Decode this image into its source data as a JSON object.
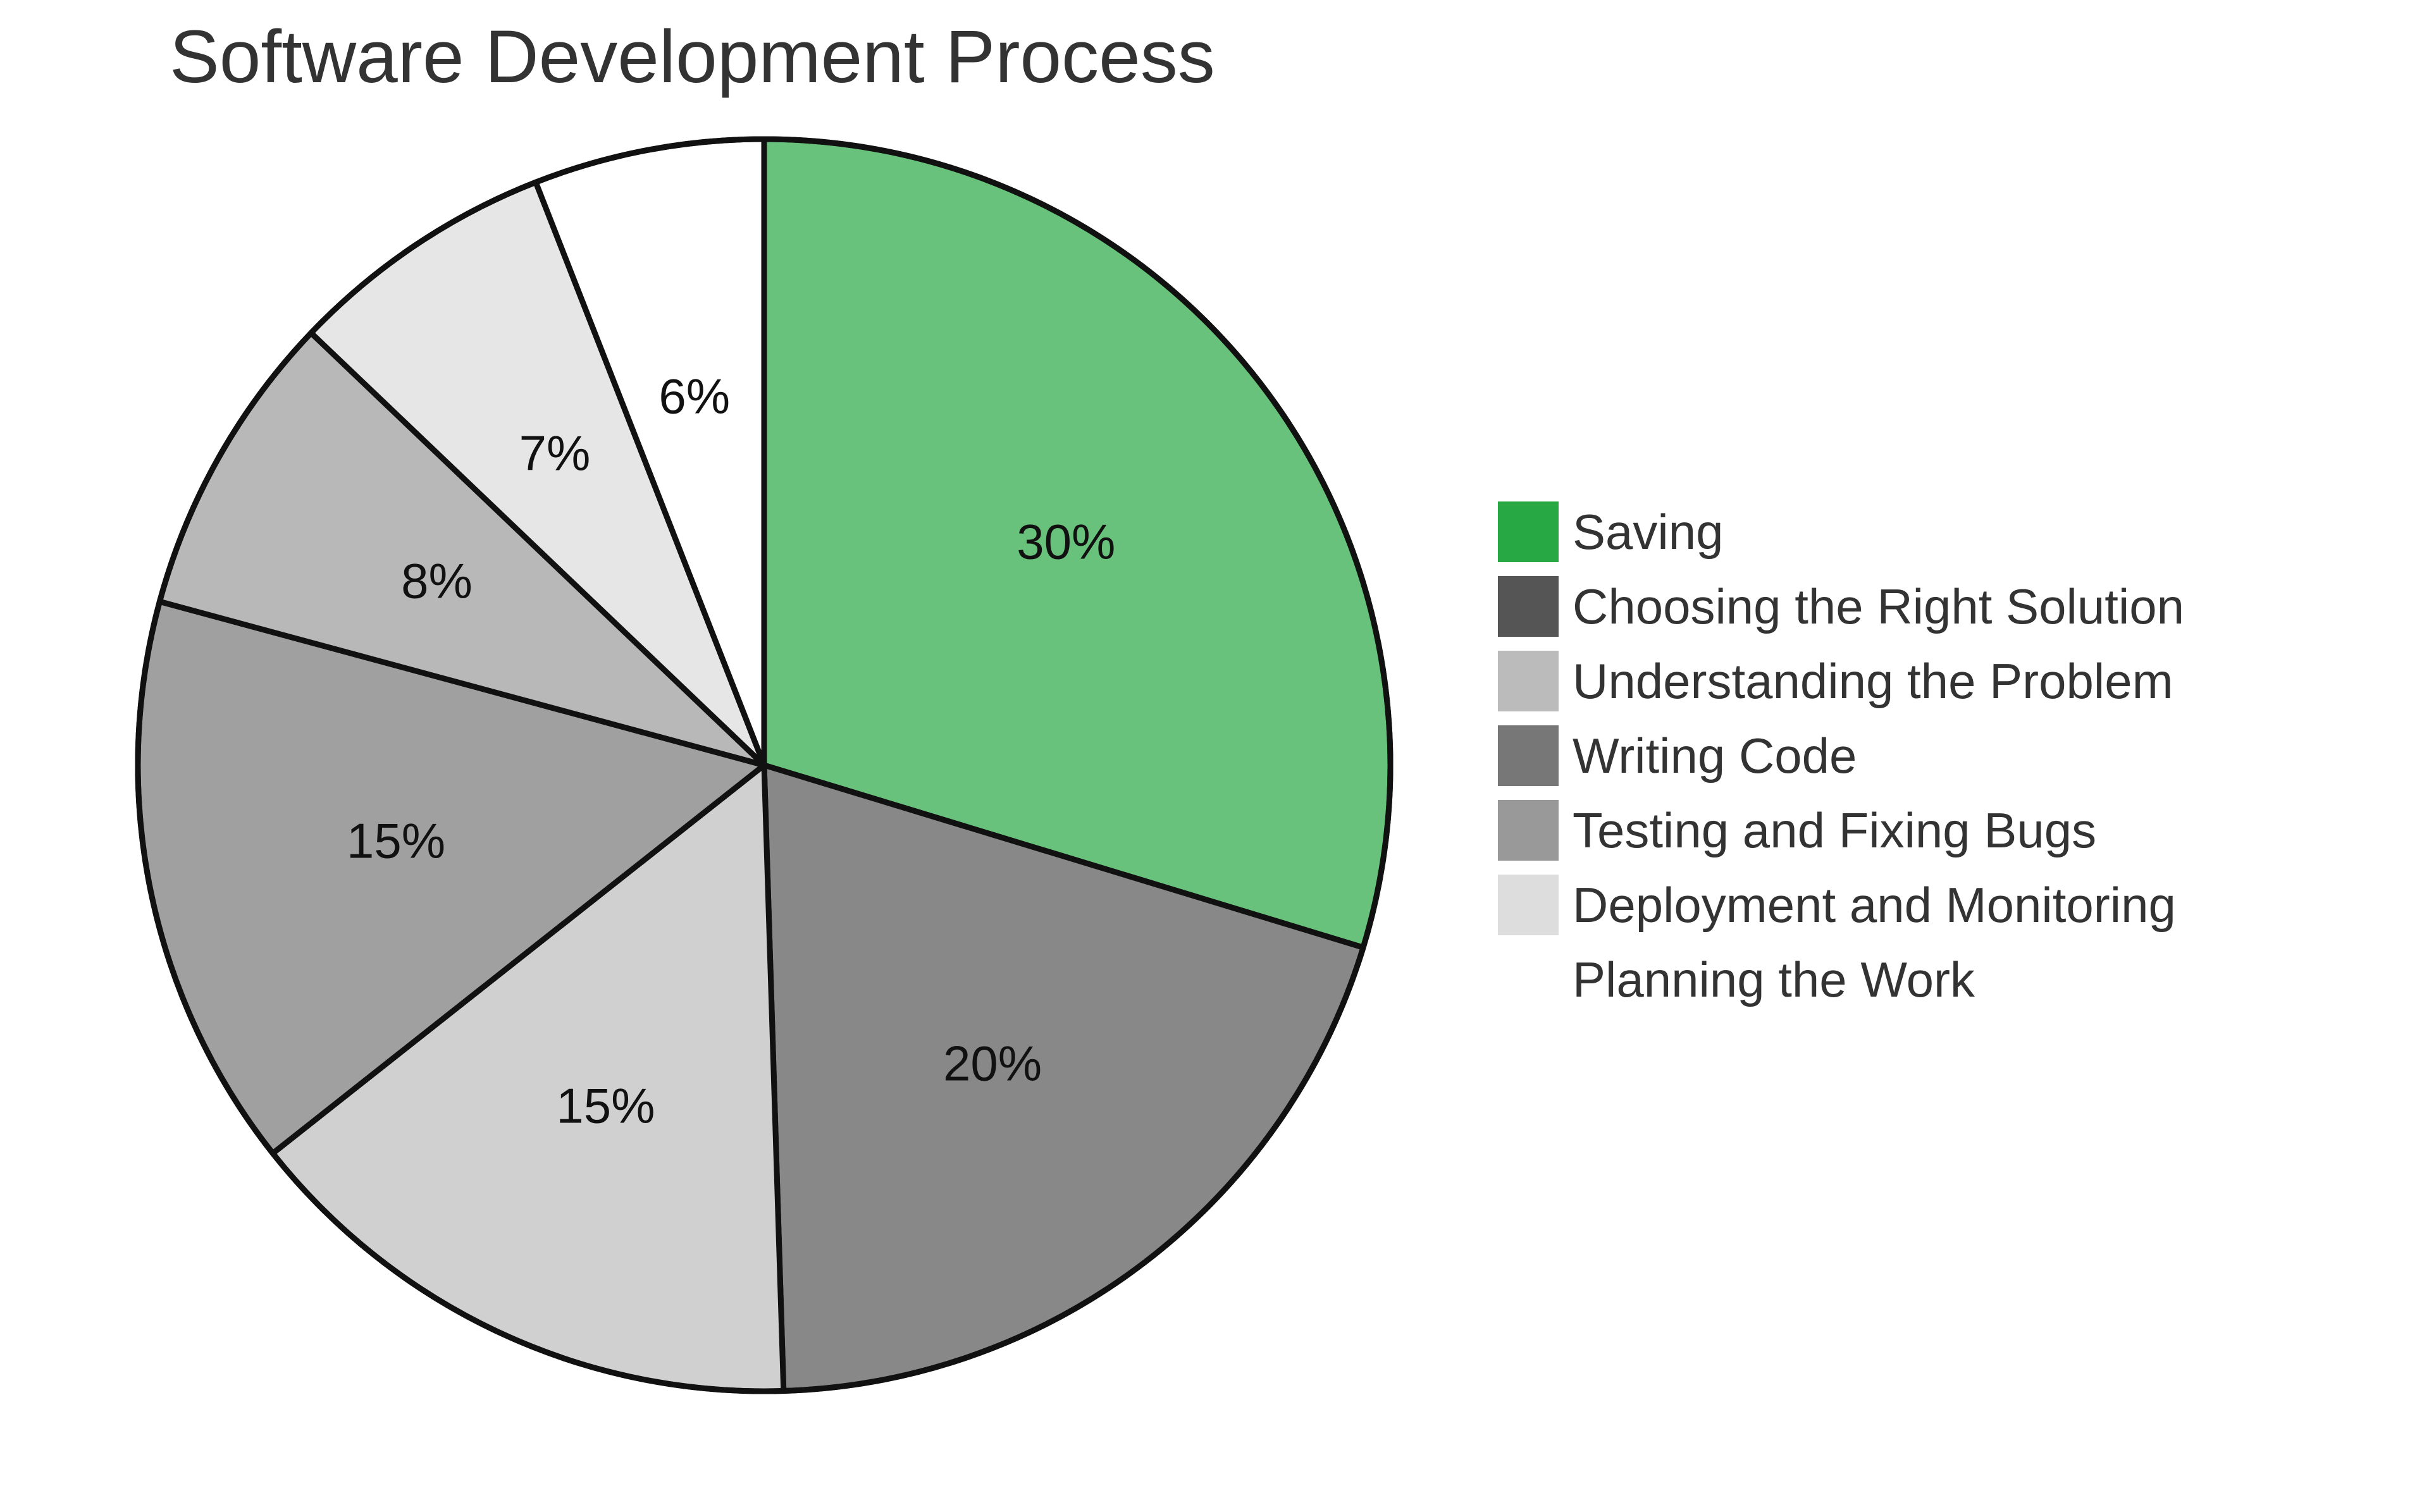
{
  "chart_data": {
    "type": "pie",
    "title": "Software Development Process",
    "start": "12 o'clock",
    "direction": "clockwise",
    "slices": [
      {
        "value": 30,
        "label": "30%",
        "color": "#69c27c"
      },
      {
        "value": 20,
        "label": "20%",
        "color": "#888888"
      },
      {
        "value": 15,
        "label": "15%",
        "color": "#d0d0d0"
      },
      {
        "value": 15,
        "label": "15%",
        "color": "#a0a0a0"
      },
      {
        "value": 8,
        "label": "8%",
        "color": "#b8b8b8"
      },
      {
        "value": 7,
        "label": "7%",
        "color": "#e6e6e6"
      },
      {
        "value": 6,
        "label": "6%",
        "color": "#ffffff"
      }
    ],
    "legend": {
      "placement": "right",
      "entries": [
        {
          "label": "Saving",
          "color": "#28a745"
        },
        {
          "label": "Choosing the Right Solution",
          "color": "#555555"
        },
        {
          "label": "Understanding the Problem",
          "color": "#bbbbbb"
        },
        {
          "label": "Writing Code",
          "color": "#777777"
        },
        {
          "label": "Testing and Fixing Bugs",
          "color": "#999999"
        },
        {
          "label": "Deployment and Monitoring",
          "color": "#dddddd"
        },
        {
          "label": "Planning the Work",
          "color": null
        }
      ]
    }
  }
}
